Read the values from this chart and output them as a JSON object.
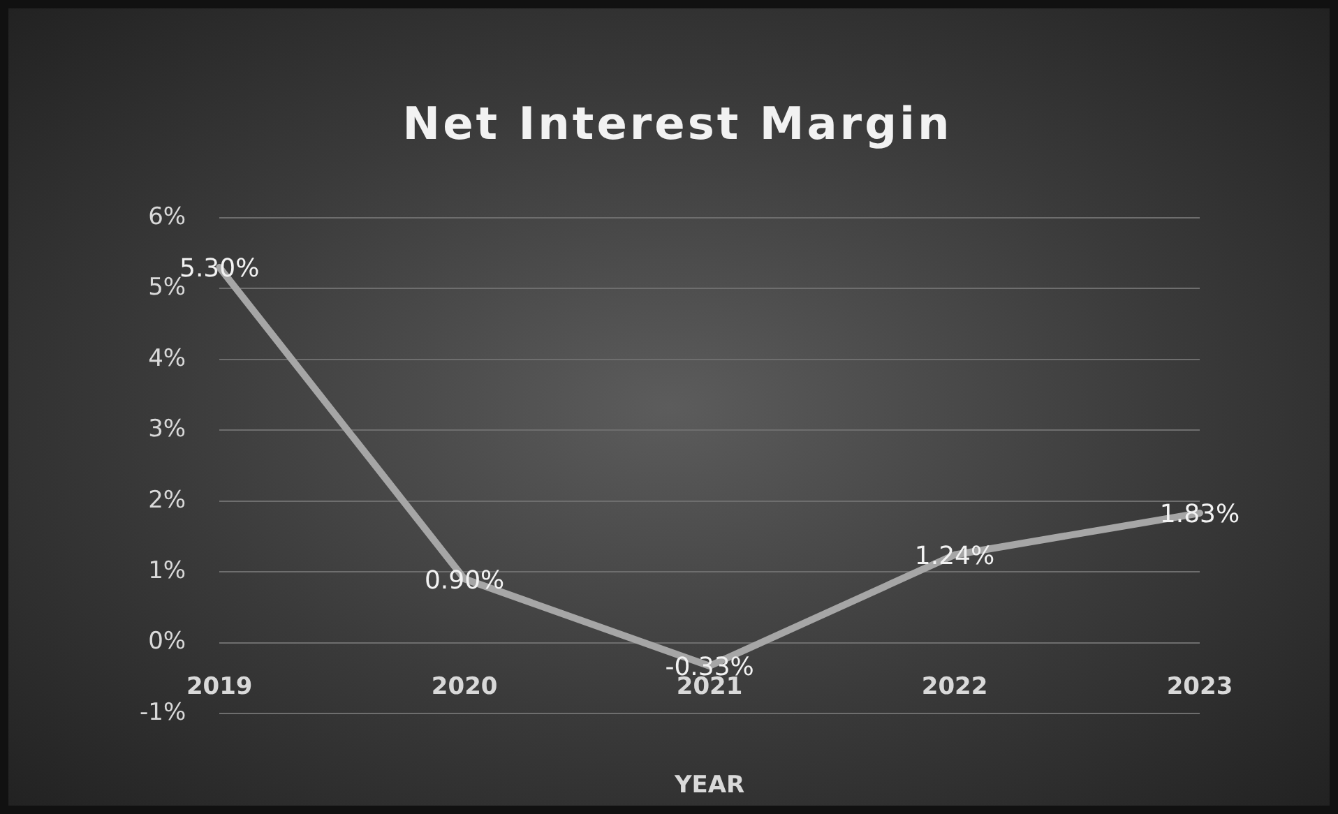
{
  "chart_data": {
    "type": "line",
    "title": "Net Interest Margin",
    "xlabel": "YEAR",
    "categories": [
      "2019",
      "2020",
      "2021",
      "2022",
      "2023"
    ],
    "series": [
      {
        "color": "#a6a6a6",
        "values": [
          5.3,
          0.9,
          -0.33,
          1.24,
          1.83
        ],
        "value_labels": [
          "5.30%",
          "0.90%",
          "-0.33%",
          "1.24%",
          "1.83%"
        ]
      }
    ],
    "ylim": [
      -1,
      6
    ],
    "yticks": [
      {
        "value": -1,
        "label": "-1%"
      },
      {
        "value": 0,
        "label": "0%"
      },
      {
        "value": 1,
        "label": "1%"
      },
      {
        "value": 2,
        "label": "2%"
      },
      {
        "value": 3,
        "label": "3%"
      },
      {
        "value": 4,
        "label": "4%"
      },
      {
        "value": 5,
        "label": "5%"
      },
      {
        "value": 6,
        "label": "6%"
      }
    ],
    "grid": "y",
    "legend": false
  }
}
